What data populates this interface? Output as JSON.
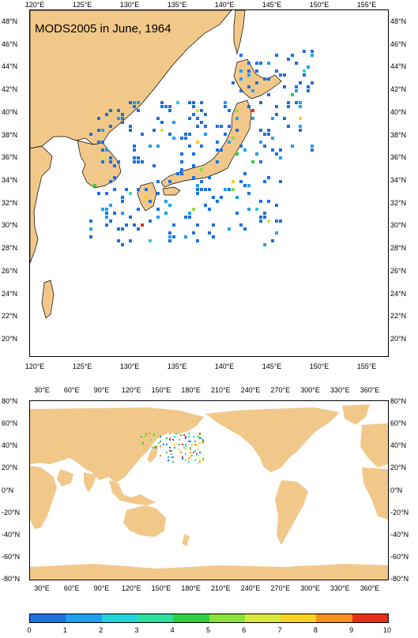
{
  "title": "MODS2005 in June, 1964",
  "top_map": {
    "x_ticks": [
      "120°E",
      "125°E",
      "130°E",
      "135°E",
      "140°E",
      "145°E",
      "150°E",
      "155°E"
    ],
    "y_ticks": [
      "20°N",
      "22°N",
      "24°N",
      "26°N",
      "28°N",
      "30°N",
      "32°N",
      "34°N",
      "36°N",
      "38°N",
      "40°N",
      "42°N",
      "44°N",
      "46°N",
      "48°N"
    ]
  },
  "bottom_map": {
    "x_ticks": [
      "30°E",
      "60°E",
      "90°E",
      "120°E",
      "150°E",
      "180°E",
      "210°E",
      "240°E",
      "270°E",
      "300°E",
      "330°E",
      "360°E"
    ],
    "y_ticks": [
      "80°N",
      "60°N",
      "40°N",
      "20°N",
      "0°N",
      "-20°N",
      "-40°N",
      "-60°N",
      "-80°N"
    ]
  },
  "colorbar": {
    "labels": [
      "0",
      "1",
      "2",
      "3",
      "4",
      "5",
      "6",
      "7",
      "8",
      "9",
      "10"
    ],
    "colors": [
      "#1e6fe0",
      "#1ea0f0",
      "#22d4dc",
      "#2ee0a0",
      "#2ed040",
      "#8ce03c",
      "#d8e83c",
      "#f8d020",
      "#f89020",
      "#e83018"
    ]
  },
  "colors": {
    "land": "#f2c88a",
    "ocean": "#ffffff"
  }
}
